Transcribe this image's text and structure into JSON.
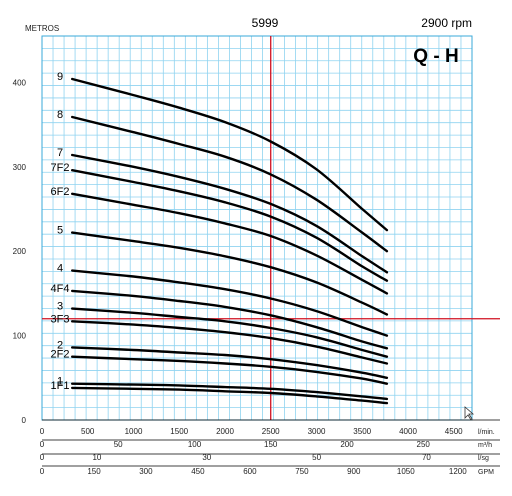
{
  "chart_data": {
    "type": "line",
    "title": "Q - H",
    "model": "5999",
    "speed": "2900 rpm",
    "ylabel": "METROS",
    "xlim": [
      0,
      4700
    ],
    "ylim": [
      0,
      455
    ],
    "y_ticks": [
      0,
      100,
      200,
      300,
      400
    ],
    "x_scales": [
      {
        "unit": "l/min.",
        "ticks": [
          0,
          500,
          1000,
          1500,
          2000,
          2500,
          3000,
          3500,
          4000,
          4500
        ],
        "max": 4700
      },
      {
        "unit": "m³/h",
        "ticks": [
          0,
          50,
          100,
          150,
          200,
          250
        ],
        "max": 282
      },
      {
        "unit": "l/sg",
        "ticks": [
          0,
          10,
          30,
          50,
          70
        ],
        "max": 78.3
      },
      {
        "unit": "GPM",
        "ticks": [
          0,
          150,
          300,
          450,
          600,
          750,
          900,
          1050,
          1200
        ],
        "max": 1241
      }
    ],
    "operating_point": {
      "flow": 2500,
      "head": 120
    },
    "series": [
      {
        "name": "9",
        "x": [
          330,
          1000,
          1500,
          2000,
          2500,
          3000,
          3500,
          3770
        ],
        "y": [
          404,
          385,
          370,
          353,
          330,
          297,
          250,
          225
        ]
      },
      {
        "name": "8",
        "x": [
          330,
          1000,
          1500,
          2000,
          2500,
          3000,
          3500,
          3770
        ],
        "y": [
          359,
          341,
          327,
          312,
          291,
          261,
          222,
          200
        ]
      },
      {
        "name": "7",
        "x": [
          330,
          1000,
          1500,
          2000,
          2500,
          3000,
          3500,
          3770
        ],
        "y": [
          314,
          300,
          288,
          274,
          256,
          230,
          194,
          175
        ]
      },
      {
        "name": "7F2",
        "x": [
          330,
          1000,
          1500,
          2000,
          2500,
          3000,
          3500,
          3770
        ],
        "y": [
          296,
          282,
          271,
          258,
          241,
          216,
          182,
          165
        ]
      },
      {
        "name": "6F2",
        "x": [
          330,
          1000,
          1500,
          2000,
          2500,
          3000,
          3500,
          3770
        ],
        "y": [
          268,
          255,
          245,
          233,
          218,
          195,
          166,
          150
        ]
      },
      {
        "name": "5",
        "x": [
          330,
          1000,
          1500,
          2000,
          2500,
          3000,
          3500,
          3770
        ],
        "y": [
          222,
          212,
          204,
          194,
          181,
          163,
          139,
          125
        ]
      },
      {
        "name": "4",
        "x": [
          330,
          1000,
          1500,
          2000,
          2500,
          3000,
          3500,
          3770
        ],
        "y": [
          177,
          170,
          163,
          155,
          144,
          129,
          110,
          100
        ]
      },
      {
        "name": "4F4",
        "x": [
          330,
          1000,
          1500,
          2000,
          2500,
          3000,
          3500,
          3770
        ],
        "y": [
          153,
          147,
          141,
          134,
          124,
          110,
          93,
          85
        ]
      },
      {
        "name": "3",
        "x": [
          330,
          1000,
          1500,
          2000,
          2500,
          3000,
          3500,
          3770
        ],
        "y": [
          132,
          127,
          122,
          117,
          109,
          98,
          83,
          75
        ]
      },
      {
        "name": "3F3",
        "x": [
          330,
          1000,
          1500,
          2000,
          2500,
          3000,
          3500,
          3770
        ],
        "y": [
          117,
          113,
          109,
          104,
          97,
          87,
          74,
          67
        ]
      },
      {
        "name": "2",
        "x": [
          330,
          1000,
          1500,
          2000,
          2500,
          3000,
          3500,
          3770
        ],
        "y": [
          86,
          83,
          80,
          77,
          72,
          65,
          56,
          50
        ]
      },
      {
        "name": "2F2",
        "x": [
          330,
          1000,
          1500,
          2000,
          2500,
          3000,
          3500,
          3770
        ],
        "y": [
          75,
          72,
          70,
          67,
          63,
          57,
          49,
          43
        ]
      },
      {
        "name": "1",
        "x": [
          330,
          1000,
          1500,
          2000,
          2500,
          3000,
          3500,
          3770
        ],
        "y": [
          43,
          42,
          41,
          39,
          37,
          33,
          28,
          25
        ]
      },
      {
        "name": "1F1",
        "x": [
          330,
          1000,
          1500,
          2000,
          2500,
          3000,
          3500,
          3770
        ],
        "y": [
          38,
          37,
          36,
          34,
          32,
          28,
          23,
          20
        ]
      }
    ],
    "colors": {
      "grid": "#8fd3f0",
      "operating_lines": "#d01020",
      "curves": "#000000"
    }
  }
}
